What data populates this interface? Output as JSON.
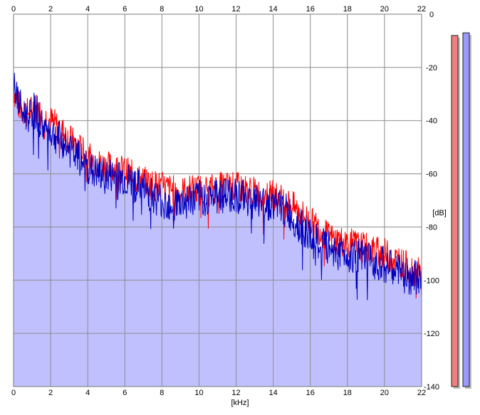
{
  "chart_data": {
    "type": "line",
    "title": "",
    "xlabel": "[kHz]",
    "ylabel": "[dB]",
    "xlim": [
      0,
      22
    ],
    "ylim": [
      -140,
      0
    ],
    "x_ticks": [
      "0",
      "2",
      "4",
      "6",
      "8",
      "10",
      "12",
      "14",
      "16",
      "18",
      "20",
      "22"
    ],
    "y_ticks": [
      "0",
      "-20",
      "-40",
      "-60",
      "-80",
      "-100",
      "-120",
      "-140"
    ],
    "grid": true,
    "x_ticks_on_top_and_bottom": true,
    "y_axis_side": "right",
    "series": [
      {
        "color": "#ff0000",
        "x": [
          0.0,
          0.25,
          0.5,
          0.75,
          1.0,
          1.25,
          1.5,
          1.75,
          2.0,
          2.5,
          3.0,
          3.5,
          4.0,
          4.5,
          5.0,
          5.5,
          6.0,
          6.5,
          7.0,
          7.5,
          8.0,
          8.5,
          9.0,
          9.5,
          10.0,
          10.5,
          11.0,
          11.5,
          12.0,
          12.5,
          13.0,
          13.5,
          14.0,
          14.5,
          15.0,
          15.5,
          16.0,
          16.5,
          17.0,
          17.5,
          18.0,
          18.5,
          19.0,
          19.5,
          20.0,
          20.5,
          21.0,
          21.5,
          22.0
        ],
        "y": [
          -28,
          -34,
          -36,
          -37,
          -36,
          -35,
          -38,
          -39,
          -40,
          -43,
          -47,
          -50,
          -54,
          -56,
          -57,
          -58,
          -59,
          -61,
          -63,
          -64,
          -65,
          -66,
          -67,
          -66,
          -66,
          -66,
          -65,
          -65,
          -65,
          -66,
          -67,
          -68,
          -68,
          -70,
          -72,
          -75,
          -78,
          -81,
          -84,
          -85,
          -86,
          -87,
          -88,
          -89,
          -90,
          -92,
          -94,
          -96,
          -98
        ]
      },
      {
        "color": "#0000c0",
        "x": [
          0.0,
          0.25,
          0.5,
          0.75,
          1.0,
          1.25,
          1.5,
          1.75,
          2.0,
          2.5,
          3.0,
          3.5,
          4.0,
          4.5,
          5.0,
          5.5,
          6.0,
          6.5,
          7.0,
          7.5,
          8.0,
          8.5,
          9.0,
          9.5,
          10.0,
          10.5,
          11.0,
          11.5,
          12.0,
          12.5,
          13.0,
          13.5,
          14.0,
          14.5,
          15.0,
          15.5,
          16.0,
          16.5,
          17.0,
          17.5,
          18.0,
          18.5,
          19.0,
          19.5,
          20.0,
          20.5,
          21.0,
          21.5,
          22.0
        ],
        "y": [
          -25,
          -33,
          -37,
          -38,
          -36,
          -37,
          -41,
          -43,
          -44,
          -47,
          -51,
          -54,
          -58,
          -60,
          -61,
          -61,
          -62,
          -64,
          -66,
          -68,
          -70,
          -71,
          -71,
          -70,
          -69,
          -69,
          -68,
          -68,
          -68,
          -69,
          -70,
          -71,
          -71,
          -73,
          -76,
          -80,
          -84,
          -87,
          -88,
          -89,
          -90,
          -91,
          -92,
          -93,
          -94,
          -96,
          -98,
          -99,
          -100
        ]
      }
    ],
    "level_meters": [
      {
        "color": "#f08080",
        "value_db": -8
      },
      {
        "color": "#9a9aff",
        "value_db": -7
      }
    ]
  }
}
